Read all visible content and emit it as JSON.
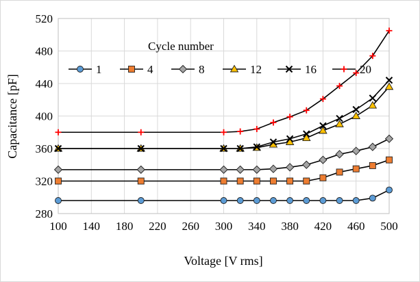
{
  "chart_data": {
    "type": "line",
    "xlabel": "Voltage [V rms]",
    "ylabel": "Capacitance [pF]",
    "xlim": [
      100,
      500
    ],
    "ylim": [
      280,
      520
    ],
    "xticks": [
      100,
      140,
      180,
      220,
      260,
      300,
      340,
      380,
      420,
      460,
      500
    ],
    "yticks": [
      280,
      320,
      360,
      400,
      440,
      480,
      520
    ],
    "grid": true,
    "legend_title": "Cycle number",
    "legend_position": "top-left",
    "x": [
      100,
      200,
      300,
      320,
      340,
      360,
      380,
      400,
      420,
      440,
      460,
      480,
      500
    ],
    "series": [
      {
        "name": "1",
        "marker": "circle",
        "color": "#5b9bd5",
        "values": [
          296,
          296,
          296,
          296,
          296,
          296,
          296,
          296,
          296,
          296,
          296,
          299,
          309
        ]
      },
      {
        "name": "4",
        "marker": "square",
        "color": "#ed7d31",
        "values": [
          320,
          320,
          320,
          320,
          320,
          320,
          320,
          320,
          324,
          331,
          335,
          339,
          346
        ]
      },
      {
        "name": "8",
        "marker": "diamond",
        "color": "#a5a5a5",
        "values": [
          334,
          334,
          334,
          334,
          334,
          335,
          337,
          340,
          346,
          353,
          357,
          362,
          372
        ]
      },
      {
        "name": "12",
        "marker": "triangle",
        "color": "#ffc000",
        "values": [
          360,
          360,
          360,
          360,
          361,
          365,
          368,
          373,
          382,
          390,
          400,
          413,
          436
        ]
      },
      {
        "name": "16",
        "marker": "x",
        "color": "#000000",
        "values": [
          360,
          360,
          360,
          360,
          362,
          368,
          372,
          378,
          388,
          397,
          408,
          422,
          444
        ]
      },
      {
        "name": "20",
        "marker": "plus",
        "color": "#ff0000",
        "values": [
          380,
          380,
          380,
          381,
          384,
          392,
          399,
          407,
          421,
          437,
          453,
          474,
          505
        ]
      }
    ]
  }
}
